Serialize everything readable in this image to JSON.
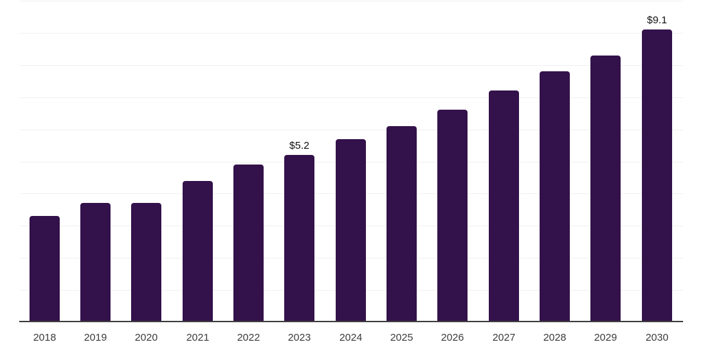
{
  "chart_data": {
    "type": "bar",
    "title": "",
    "xlabel": "",
    "ylabel": "",
    "categories": [
      "2018",
      "2019",
      "2020",
      "2021",
      "2022",
      "2023",
      "2024",
      "2025",
      "2026",
      "2027",
      "2028",
      "2029",
      "2030"
    ],
    "values": [
      3.3,
      3.7,
      3.7,
      4.4,
      4.9,
      5.2,
      5.7,
      6.1,
      6.6,
      7.2,
      7.8,
      8.3,
      9.1
    ],
    "data_labels": [
      "",
      "",
      "",
      "",
      "",
      "$5.2",
      "",
      "",
      "",
      "",
      "",
      "",
      "$9.1"
    ],
    "ylim": [
      0,
      10
    ],
    "grid": "horizontal",
    "gridline_step": 1,
    "legend": "none",
    "y_axis_labels_visible": false
  },
  "colors": {
    "bar": "#33114a",
    "gridline": "#f1f1f1",
    "axis_line": "#3f3f3f",
    "tick_label": "#3c3c3c",
    "data_label": "#111111",
    "background": "#ffffff"
  }
}
